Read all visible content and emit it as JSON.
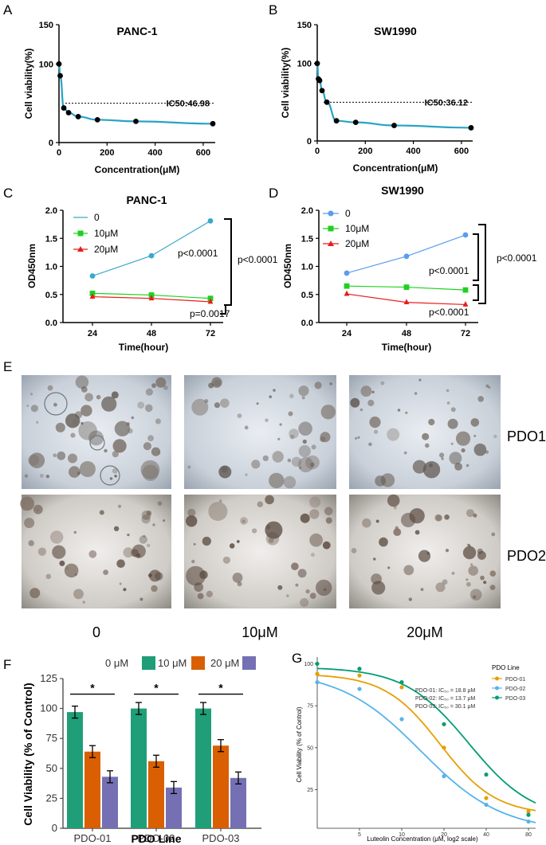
{
  "panel_labels": {
    "A": "A",
    "B": "B",
    "C": "C",
    "D": "D",
    "E": "E",
    "F": "F",
    "G": "G"
  },
  "chart_data": [
    {
      "panel": "A",
      "type": "line",
      "title": "PANC-1",
      "xlabel": "Concentration(μM)",
      "ylabel": "Cell viability(%)",
      "xlim": [
        0,
        650
      ],
      "ylim": [
        0,
        150
      ],
      "xticks": [
        "0",
        "200",
        "400",
        "600"
      ],
      "yticks": [
        "0",
        "100",
        "150"
      ],
      "x": [
        0,
        5,
        20,
        40,
        80,
        160,
        320,
        640
      ],
      "y": [
        100,
        85,
        44,
        38,
        33,
        29,
        27,
        24
      ],
      "reference_line": {
        "y": 50,
        "label": "IC50:46.98"
      },
      "line_color": "#29a3c4",
      "marker_color": "#000000"
    },
    {
      "panel": "B",
      "type": "line",
      "title": "SW1990",
      "xlabel": "Concentration(μM)",
      "ylabel": "Cell viability(%)",
      "xlim": [
        0,
        650
      ],
      "ylim": [
        0,
        150
      ],
      "xticks": [
        "0",
        "200",
        "400",
        "600"
      ],
      "yticks": [
        "0",
        "100",
        "150"
      ],
      "x": [
        0,
        5,
        10,
        20,
        40,
        80,
        160,
        320,
        640
      ],
      "y": [
        100,
        80,
        78,
        65,
        50,
        26,
        24,
        20,
        17
      ],
      "reference_line": {
        "y": 50,
        "label": "IC50:36.12"
      },
      "line_color": "#29a3c4",
      "marker_color": "#000000"
    },
    {
      "panel": "C",
      "type": "line",
      "title": "PANC-1",
      "xlabel": "Time(hour)",
      "ylabel": "OD450nm",
      "ylim": [
        0,
        2.0
      ],
      "categories": [
        "24",
        "48",
        "72"
      ],
      "yticks": [
        "0.0",
        "0.5",
        "1.0",
        "1.5",
        "2.0"
      ],
      "series": [
        {
          "name": "0",
          "values": [
            0.83,
            1.19,
            1.81
          ],
          "color": "#3aa7cc",
          "marker": "circle"
        },
        {
          "name": "10μM",
          "values": [
            0.52,
            0.49,
            0.43
          ],
          "color": "#1fd11f",
          "marker": "square"
        },
        {
          "name": "20μM",
          "values": [
            0.46,
            0.43,
            0.37
          ],
          "color": "#e81c1c",
          "marker": "triangle"
        }
      ],
      "annotations": [
        "p<0.0001",
        "p<0.0001",
        "p=0.0017"
      ]
    },
    {
      "panel": "D",
      "type": "line",
      "title": "SW1990",
      "xlabel": "Time(hour)",
      "ylabel": "OD450nm",
      "ylim": [
        0,
        2.0
      ],
      "categories": [
        "24",
        "48",
        "72"
      ],
      "yticks": [
        "0.0",
        "0.5",
        "1.0",
        "1.5",
        "2.0"
      ],
      "series": [
        {
          "name": "0",
          "values": [
            0.88,
            1.18,
            1.56
          ],
          "color": "#5a9cf0",
          "marker": "circle"
        },
        {
          "name": "10μM",
          "values": [
            0.65,
            0.63,
            0.58
          ],
          "color": "#1fd11f",
          "marker": "square"
        },
        {
          "name": "20μM",
          "values": [
            0.51,
            0.36,
            0.32
          ],
          "color": "#e81c1c",
          "marker": "triangle"
        }
      ],
      "annotations": [
        "p<0.0001",
        "p<0.0001",
        "p<0.0001"
      ]
    },
    {
      "panel": "F",
      "type": "bar",
      "xlabel": "PDO Line",
      "ylabel": "Cell Viability (% of Control)",
      "ylim": [
        0,
        125
      ],
      "categories": [
        "PDO-01",
        "PDO-02",
        "PDO-03"
      ],
      "yticks": [
        "0",
        "25",
        "50",
        "75",
        "100",
        "125"
      ],
      "series": [
        {
          "name": "0 μM",
          "values": [
            97,
            100,
            100
          ],
          "errors": [
            5,
            5,
            5
          ],
          "color": "#1f9e77"
        },
        {
          "name": "10 μM",
          "values": [
            64,
            56,
            69
          ],
          "errors": [
            5,
            5,
            5
          ],
          "color": "#d95f02"
        },
        {
          "name": "20 μM",
          "values": [
            43,
            34,
            42
          ],
          "errors": [
            5,
            5,
            5
          ],
          "color": "#7570b3"
        }
      ],
      "significance": [
        "*",
        "*",
        "*"
      ]
    },
    {
      "panel": "G",
      "type": "line",
      "xlabel": "Luteolin Concentration (μM, log2 scale)",
      "ylabel": "Cell Viability (% of Control)",
      "x_scale": "log2",
      "xticks": [
        "5",
        "10",
        "20",
        "40",
        "80"
      ],
      "yticks": [
        "25",
        "50",
        "75",
        "100"
      ],
      "legend_title": "PDO Line",
      "series": [
        {
          "name": "PDO-01",
          "color": "#e69f00",
          "ic50": 18.8,
          "hill": 2.2,
          "top": 94,
          "bottom": 10,
          "x": [
            2.5,
            5,
            10,
            20,
            40,
            80
          ],
          "y": [
            94,
            93,
            86,
            50,
            20,
            12
          ]
        },
        {
          "name": "PDO-02",
          "color": "#56b4e9",
          "ic50": 13.7,
          "hill": 1.5,
          "top": 96,
          "bottom": 0,
          "x": [
            2.5,
            5,
            10,
            20,
            40,
            80
          ],
          "y": [
            89,
            85,
            67,
            33,
            16,
            6
          ]
        },
        {
          "name": "PDO-03",
          "color": "#009e73",
          "ic50": 30.1,
          "hill": 1.9,
          "top": 98,
          "bottom": 7,
          "x": [
            2.5,
            5,
            10,
            20,
            40,
            80
          ],
          "y": [
            100,
            97,
            89,
            64,
            34,
            10
          ]
        }
      ],
      "annotations": [
        "PDO-01: IC₅₀ = 18.8 μM",
        "PDO-02: IC₅₀ = 13.7 μM",
        "PDO-03: IC₅₀ = 30.1 μM"
      ]
    }
  ],
  "photo_panel": {
    "row_labels": [
      "PDO1",
      "PDO2"
    ],
    "column_labels": [
      "0",
      "10μM",
      "20μM"
    ]
  }
}
